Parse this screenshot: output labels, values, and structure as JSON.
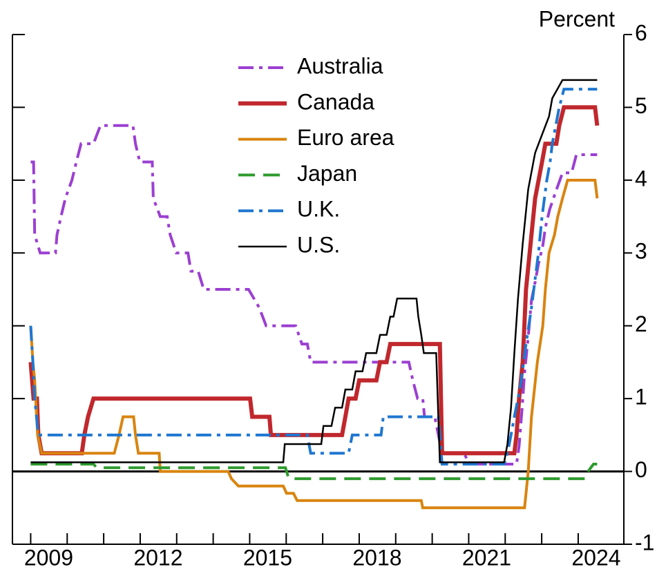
{
  "chart_data": {
    "type": "line",
    "y_axis_label": "Percent",
    "legend": "top-center",
    "xlim": [
      2008.5,
      2025.25
    ],
    "xticks": [
      2009,
      2012,
      2015,
      2018,
      2021,
      2024
    ],
    "xminor_ticks": [
      2010,
      2011,
      2013,
      2014,
      2016,
      2017,
      2019,
      2020,
      2022,
      2023
    ],
    "ylim": [
      -1,
      6
    ],
    "yticks": [
      -1,
      0,
      1,
      2,
      3,
      4,
      5,
      6
    ],
    "zero_line": true,
    "series": [
      {
        "name": "Australia",
        "color": "#9b3fd1",
        "style": "dashdot",
        "x": [
          2009.0,
          2009.08,
          2009.11,
          2009.26,
          2009.68,
          2009.72,
          2009.83,
          2009.95,
          2010.13,
          2010.25,
          2010.38,
          2010.72,
          2010.91,
          2011.8,
          2011.87,
          2011.99,
          2012.33,
          2012.36,
          2012.55,
          2012.74,
          2012.82,
          2012.99,
          2013.31,
          2013.39,
          2013.59,
          2013.74,
          2014.97,
          2015.26,
          2015.45,
          2016.26,
          2016.43,
          2016.58,
          2016.67,
          2019.36,
          2019.47,
          2019.6,
          2019.74,
          2019.79,
          2020.07,
          2020.17,
          2020.27,
          2020.87,
          2021.02,
          2022.31,
          2022.38,
          2022.46,
          2022.53,
          2022.63,
          2022.72,
          2022.82,
          2022.91,
          2023.03,
          2023.1,
          2023.22,
          2023.39,
          2023.57,
          2023.82,
          2023.95,
          2024.52
        ],
        "values": [
          4.25,
          4.25,
          3.25,
          3.0,
          3.0,
          3.25,
          3.5,
          3.75,
          4.0,
          4.25,
          4.5,
          4.5,
          4.75,
          4.75,
          4.5,
          4.25,
          4.25,
          3.75,
          3.5,
          3.5,
          3.25,
          3.0,
          3.0,
          2.75,
          2.75,
          2.5,
          2.5,
          2.25,
          2.0,
          2.0,
          1.75,
          1.75,
          1.5,
          1.5,
          1.25,
          1.0,
          1.0,
          0.75,
          0.75,
          0.5,
          0.25,
          0.25,
          0.1,
          0.1,
          0.35,
          0.85,
          1.35,
          1.85,
          2.35,
          2.6,
          2.85,
          3.1,
          3.35,
          3.6,
          3.85,
          4.1,
          4.1,
          4.35,
          4.35
        ]
      },
      {
        "name": "Canada",
        "color": "#c0282d",
        "style": "solid",
        "width": 6,
        "x": [
          2009.0,
          2009.08,
          2009.17,
          2009.21,
          2009.3,
          2010.4,
          2010.47,
          2010.57,
          2010.72,
          2015.01,
          2015.07,
          2015.54,
          2015.58,
          2017.53,
          2017.62,
          2017.71,
          2017.9,
          2018.0,
          2018.47,
          2018.57,
          2018.75,
          2018.85,
          2020.21,
          2020.27,
          2022.25,
          2022.31,
          2022.38,
          2022.48,
          2022.57,
          2022.72,
          2022.82,
          2023.01,
          2023.1,
          2023.4,
          2023.48,
          2023.61,
          2024.46,
          2024.52
        ],
        "values": [
          1.5,
          1.0,
          1.0,
          0.5,
          0.25,
          0.25,
          0.5,
          0.75,
          1.0,
          1.0,
          0.75,
          0.75,
          0.5,
          0.5,
          0.75,
          1.0,
          1.0,
          1.25,
          1.25,
          1.5,
          1.5,
          1.75,
          1.75,
          0.25,
          0.25,
          0.5,
          1.0,
          1.5,
          2.5,
          3.25,
          3.75,
          4.25,
          4.5,
          4.5,
          4.75,
          5.0,
          5.0,
          4.75
        ]
      },
      {
        "name": "Euro area",
        "color": "#d9840f",
        "style": "solid",
        "x": [
          2009.0,
          2009.06,
          2009.11,
          2009.19,
          2009.3,
          2011.29,
          2011.42,
          2011.53,
          2011.82,
          2011.87,
          2011.95,
          2012.52,
          2012.55,
          2014.41,
          2014.5,
          2014.69,
          2015.92,
          2016.01,
          2016.2,
          2016.3,
          2019.7,
          2019.74,
          2022.53,
          2022.63,
          2022.72,
          2022.88,
          2023.03,
          2023.1,
          2023.2,
          2023.35,
          2023.44,
          2023.57,
          2023.71,
          2024.46,
          2024.52
        ],
        "values": [
          2.0,
          1.5,
          1.25,
          0.5,
          0.25,
          0.25,
          0.5,
          0.75,
          0.75,
          0.5,
          0.25,
          0.25,
          0.0,
          0.0,
          -0.1,
          -0.2,
          -0.2,
          -0.3,
          -0.3,
          -0.4,
          -0.4,
          -0.5,
          -0.5,
          0.0,
          0.75,
          1.5,
          2.0,
          2.5,
          3.0,
          3.25,
          3.5,
          3.75,
          4.0,
          4.0,
          3.75
        ]
      },
      {
        "name": "Japan",
        "color": "#2e9b2e",
        "style": "dashed",
        "x": [
          2009.0,
          2010.72,
          2010.81,
          2015.98,
          2016.07,
          2024.2,
          2024.27,
          2024.42,
          2024.52
        ],
        "values": [
          0.1,
          0.1,
          0.05,
          0.05,
          -0.1,
          -0.1,
          0.0,
          0.1,
          0.1
        ]
      },
      {
        "name": "U.K.",
        "color": "#1f77d0",
        "style": "dashdot",
        "x": [
          2009.0,
          2009.06,
          2009.11,
          2009.21,
          2016.58,
          2016.67,
          2017.71,
          2017.81,
          2018.6,
          2018.66,
          2020.17,
          2020.27,
          2021.97,
          2022.06,
          2022.16,
          2022.25,
          2022.35,
          2022.44,
          2022.57,
          2022.72,
          2022.91,
          2023.01,
          2023.14,
          2023.23,
          2023.29,
          2023.48,
          2023.61,
          2024.52
        ],
        "values": [
          2.0,
          1.5,
          1.0,
          0.5,
          0.5,
          0.25,
          0.25,
          0.5,
          0.5,
          0.75,
          0.75,
          0.1,
          0.1,
          0.25,
          0.5,
          0.75,
          1.0,
          1.25,
          1.75,
          2.25,
          3.0,
          3.5,
          4.0,
          4.25,
          4.5,
          5.0,
          5.25,
          5.25
        ]
      },
      {
        "name": "U.S.",
        "color": "#000000",
        "style": "solid",
        "width": 2.5,
        "x": [
          2009.0,
          2015.92,
          2015.96,
          2016.96,
          2017.02,
          2017.24,
          2017.34,
          2017.53,
          2017.62,
          2017.81,
          2017.9,
          2018.09,
          2018.19,
          2018.47,
          2018.57,
          2018.75,
          2018.85,
          2018.94,
          2019.04,
          2019.57,
          2019.62,
          2019.7,
          2019.77,
          2020.11,
          2020.21,
          2021.97,
          2022.06,
          2022.16,
          2022.25,
          2022.35,
          2022.48,
          2022.63,
          2022.82,
          2023.01,
          2023.2,
          2023.29,
          2023.57,
          2024.52
        ],
        "values": [
          0.125,
          0.125,
          0.375,
          0.375,
          0.625,
          0.625,
          0.875,
          0.875,
          1.125,
          1.125,
          1.375,
          1.375,
          1.625,
          1.625,
          1.875,
          1.875,
          2.125,
          2.125,
          2.375,
          2.375,
          2.125,
          1.875,
          1.625,
          1.625,
          0.125,
          0.125,
          0.375,
          0.875,
          1.625,
          2.375,
          3.125,
          3.875,
          4.375,
          4.625,
          4.875,
          5.125,
          5.375,
          5.375
        ]
      }
    ]
  }
}
